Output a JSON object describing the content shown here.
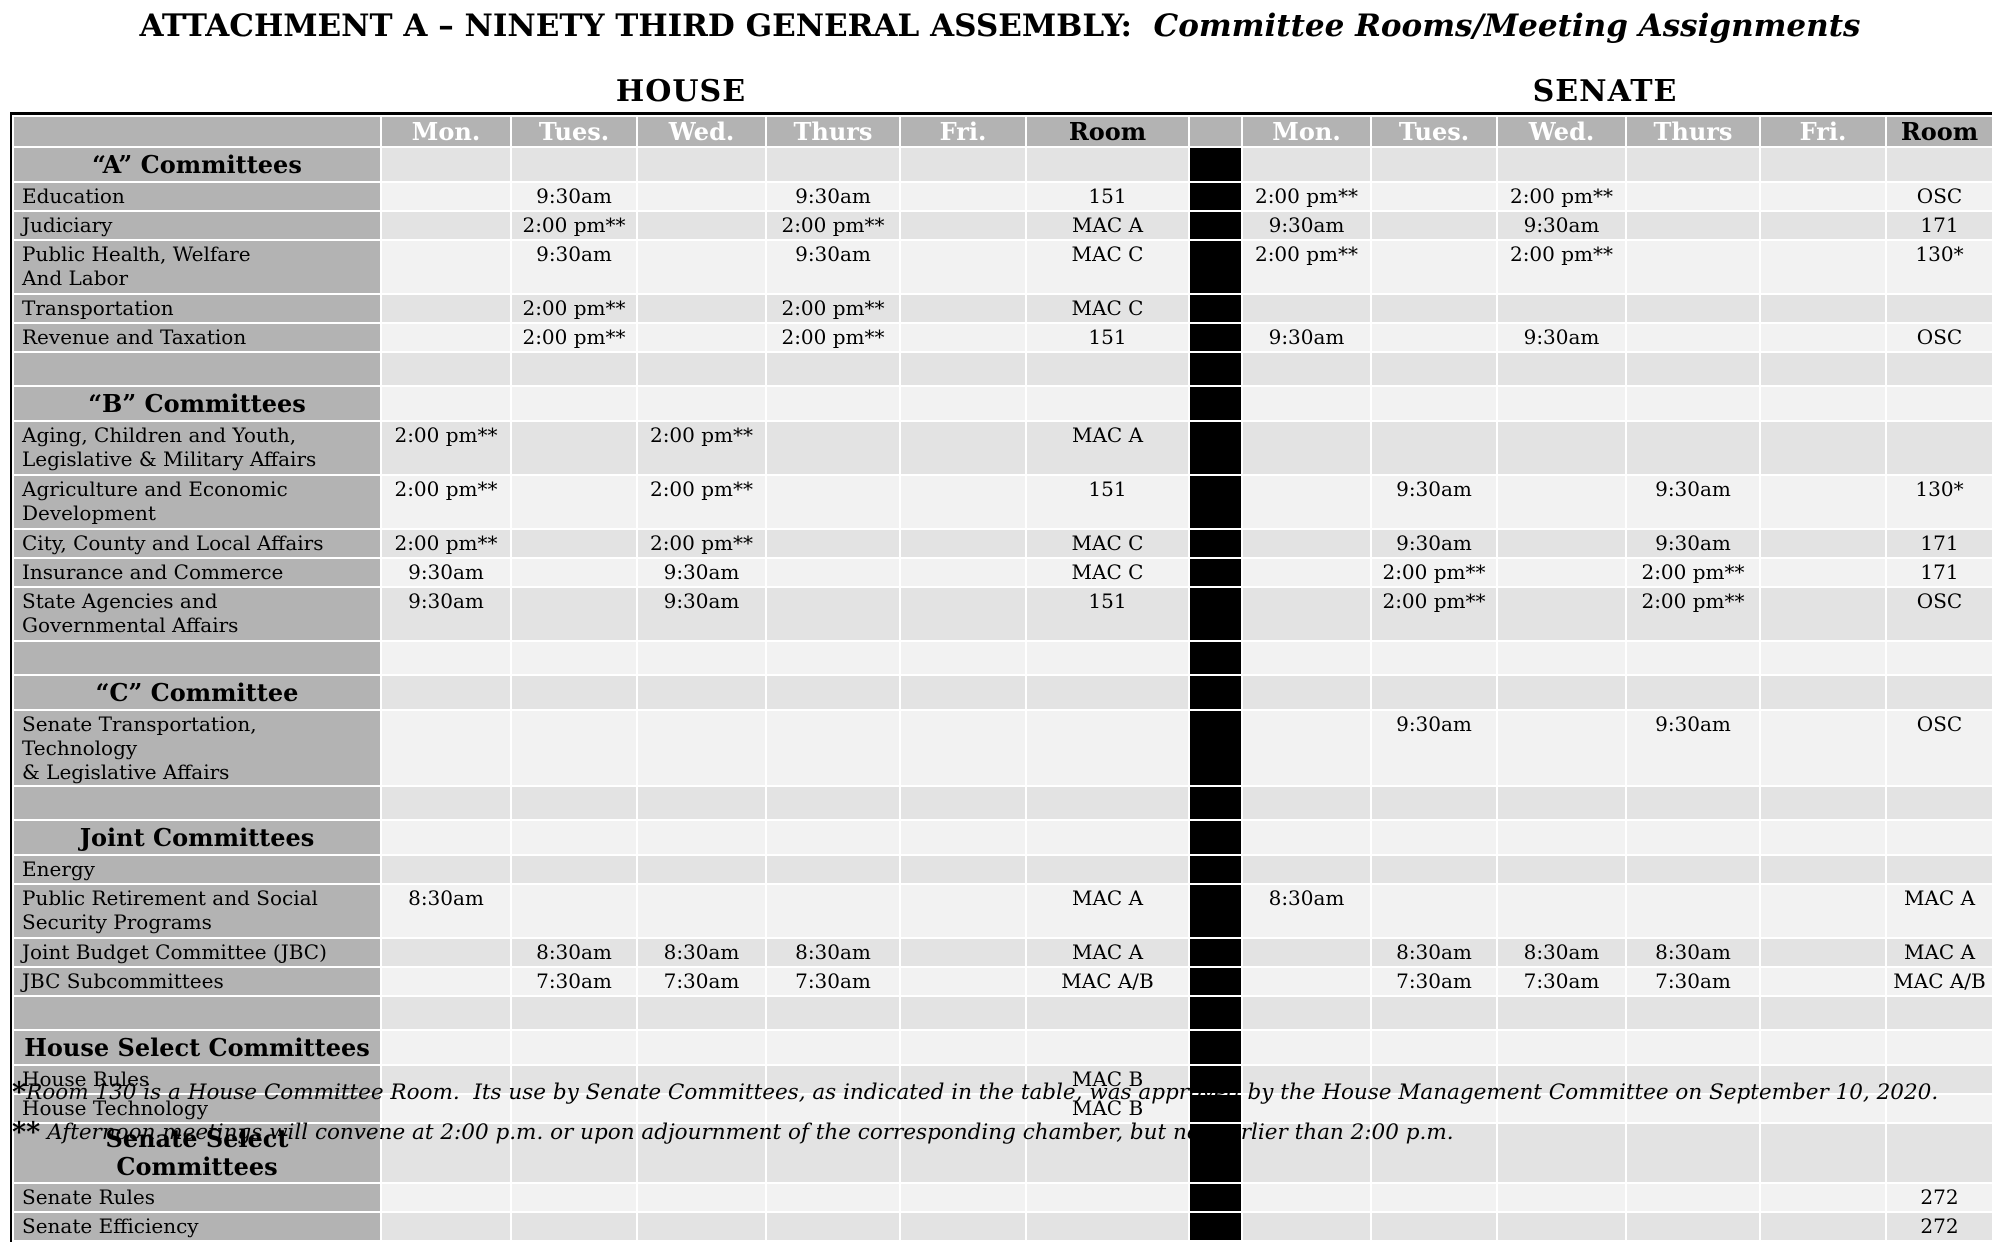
{
  "title": {
    "prefix": "ATTACHMENT A – NINETY THIRD GENERAL ASSEMBLY:  ",
    "suffix": "Committee Rooms/Meeting Assignments"
  },
  "chambers": {
    "house": "HOUSE",
    "senate": "SENATE"
  },
  "day_headers": [
    "Mon.",
    "Tues.",
    "Wed.",
    "Thurs",
    "Fri.",
    "Room"
  ],
  "colors": {
    "header_bg": "#b3b3b3",
    "row_dark": "#e3e3e3",
    "row_light": "#f2f2f2",
    "separator": "#000000"
  },
  "rows": [
    {
      "type": "section",
      "name": "“A” Committees"
    },
    {
      "type": "committee",
      "name": "Education",
      "house": [
        "",
        "9:30am",
        "",
        "9:30am",
        "",
        "151"
      ],
      "senate": [
        "2:00 pm**",
        "",
        "2:00 pm**",
        "",
        "",
        "OSC"
      ]
    },
    {
      "type": "committee",
      "name": "Judiciary",
      "house": [
        "",
        "2:00 pm**",
        "",
        "2:00 pm**",
        "",
        "MAC A"
      ],
      "senate": [
        "9:30am",
        "",
        "9:30am",
        "",
        "",
        "171"
      ]
    },
    {
      "type": "committee",
      "name": "Public Health, Welfare\nAnd Labor",
      "house": [
        "",
        "9:30am",
        "",
        "9:30am",
        "",
        "MAC C"
      ],
      "senate": [
        "2:00 pm**",
        "",
        "2:00 pm**",
        "",
        "",
        "130*"
      ]
    },
    {
      "type": "committee",
      "name": "Transportation",
      "house": [
        "",
        "2:00 pm**",
        "",
        "2:00 pm**",
        "",
        "MAC C"
      ],
      "senate": [
        "",
        "",
        "",
        "",
        "",
        ""
      ]
    },
    {
      "type": "committee",
      "name": "Revenue and Taxation",
      "house": [
        "",
        "2:00 pm**",
        "",
        "2:00 pm**",
        "",
        "151"
      ],
      "senate": [
        "9:30am",
        "",
        "9:30am",
        "",
        "",
        "OSC"
      ]
    },
    {
      "type": "spacer"
    },
    {
      "type": "section",
      "name": "“B” Committees"
    },
    {
      "type": "committee",
      "name": "Aging, Children and Youth,\nLegislative & Military Affairs",
      "house": [
        "2:00 pm**",
        "",
        "2:00 pm**",
        "",
        "",
        "MAC A"
      ],
      "senate": [
        "",
        "",
        "",
        "",
        "",
        ""
      ]
    },
    {
      "type": "committee",
      "name": "Agriculture and Economic\nDevelopment",
      "house": [
        "2:00 pm**",
        "",
        "2:00 pm**",
        "",
        "",
        "151"
      ],
      "senate": [
        "",
        "9:30am",
        "",
        "9:30am",
        "",
        "130*"
      ]
    },
    {
      "type": "committee",
      "name": "City, County and Local Affairs",
      "house": [
        "2:00 pm**",
        "",
        "2:00 pm**",
        "",
        "",
        "MAC C"
      ],
      "senate": [
        "",
        "9:30am",
        "",
        "9:30am",
        "",
        "171"
      ]
    },
    {
      "type": "committee",
      "name": "Insurance and Commerce",
      "house": [
        "9:30am",
        "",
        "9:30am",
        "",
        "",
        "MAC C"
      ],
      "senate": [
        "",
        "2:00 pm**",
        "",
        "2:00 pm**",
        "",
        "171"
      ]
    },
    {
      "type": "committee",
      "name": "State Agencies and\nGovernmental Affairs",
      "house": [
        "9:30am",
        "",
        "9:30am",
        "",
        "",
        "151"
      ],
      "senate": [
        "",
        "2:00 pm**",
        "",
        "2:00 pm**",
        "",
        "OSC"
      ]
    },
    {
      "type": "spacer"
    },
    {
      "type": "section",
      "name": "“C” Committee"
    },
    {
      "type": "committee",
      "name": "Senate Transportation, Technology\n& Legislative Affairs",
      "house": [
        "",
        "",
        "",
        "",
        "",
        ""
      ],
      "senate": [
        "",
        "9:30am",
        "",
        "9:30am",
        "",
        "OSC"
      ]
    },
    {
      "type": "spacer"
    },
    {
      "type": "section",
      "name": "Joint Committees"
    },
    {
      "type": "committee",
      "name": "Energy",
      "house": [
        "",
        "",
        "",
        "",
        "",
        ""
      ],
      "senate": [
        "",
        "",
        "",
        "",
        "",
        ""
      ]
    },
    {
      "type": "committee",
      "name": "Public Retirement and Social\nSecurity Programs",
      "house": [
        "8:30am",
        "",
        "",
        "",
        "",
        "MAC A"
      ],
      "senate": [
        "8:30am",
        "",
        "",
        "",
        "",
        "MAC A"
      ]
    },
    {
      "type": "committee",
      "name": "Joint Budget Committee (JBC)",
      "house": [
        "",
        "8:30am",
        "8:30am",
        "8:30am",
        "",
        "MAC A"
      ],
      "senate": [
        "",
        "8:30am",
        "8:30am",
        "8:30am",
        "",
        "MAC A"
      ]
    },
    {
      "type": "committee",
      "name": "JBC Subcommittees",
      "house": [
        "",
        "7:30am",
        "7:30am",
        "7:30am",
        "",
        "MAC A/B"
      ],
      "senate": [
        "",
        "7:30am",
        "7:30am",
        "7:30am",
        "",
        "MAC A/B"
      ]
    },
    {
      "type": "spacer"
    },
    {
      "type": "section",
      "name": "House Select Committees"
    },
    {
      "type": "committee",
      "name": "House Rules",
      "house": [
        "",
        "",
        "",
        "",
        "",
        "MAC B"
      ],
      "senate": [
        "",
        "",
        "",
        "",
        "",
        ""
      ]
    },
    {
      "type": "committee",
      "name": "House Technology",
      "house": [
        "",
        "",
        "",
        "",
        "",
        "MAC B"
      ],
      "senate": [
        "",
        "",
        "",
        "",
        "",
        ""
      ]
    },
    {
      "type": "section",
      "name": "Senate Select Committees"
    },
    {
      "type": "committee",
      "name": "Senate Rules",
      "house": [
        "",
        "",
        "",
        "",
        "",
        ""
      ],
      "senate": [
        "",
        "",
        "",
        "",
        "",
        "272"
      ]
    },
    {
      "type": "committee",
      "name": "Senate Efficiency",
      "house": [
        "",
        "",
        "",
        "",
        "",
        ""
      ],
      "senate": [
        "",
        "",
        "",
        "",
        "",
        "272"
      ]
    }
  ],
  "footnotes": [
    {
      "marker": "*",
      "text": "Room 130 is a House Committee Room.  Its use by Senate Committees, as indicated in the table, was approved by the House Management Committee on September 10, 2020."
    },
    {
      "marker": "**",
      "text": " Afternoon meetings will convene at 2:00 p.m. or upon adjournment of the corresponding chamber, but not earlier than 2:00 p.m."
    }
  ]
}
